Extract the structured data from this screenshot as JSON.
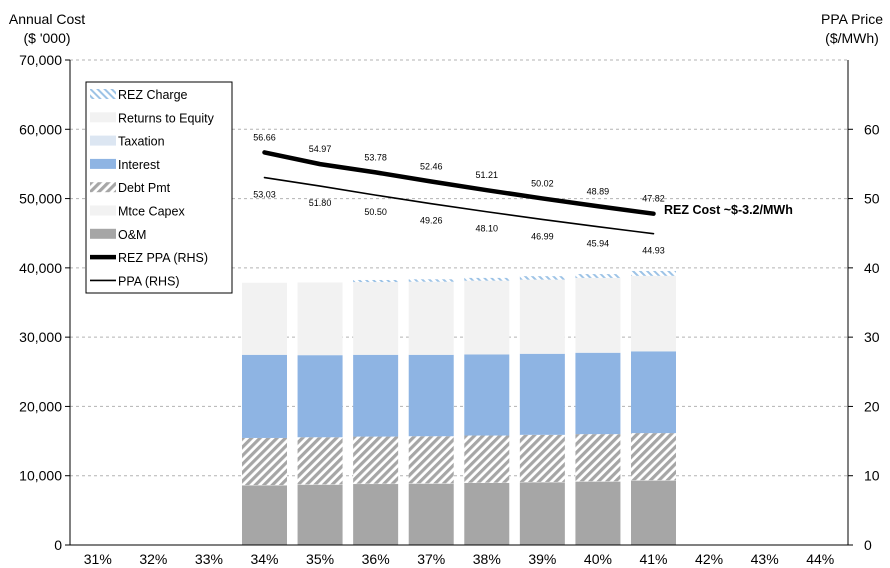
{
  "chart_data": {
    "type": "bar",
    "y_left": {
      "label_line1": "Annual  Cost",
      "label_line2": "($ '000)",
      "lim": [
        0,
        70000
      ],
      "ticks": [
        "0",
        "10,000",
        "20,000",
        "30,000",
        "40,000",
        "50,000",
        "60,000",
        "70,000"
      ],
      "tick_values": [
        0,
        10000,
        20000,
        30000,
        40000,
        50000,
        60000,
        70000
      ]
    },
    "y_right": {
      "label_line1": "PPA Price",
      "label_line2": "($/MWh)",
      "lim": [
        0,
        70
      ],
      "ticks": [
        "0",
        "10",
        "20",
        "30",
        "40",
        "50",
        "60"
      ],
      "tick_values": [
        0,
        10,
        20,
        30,
        40,
        50,
        60
      ]
    },
    "categories": [
      "31%",
      "32%",
      "33%",
      "34%",
      "35%",
      "36%",
      "37%",
      "38%",
      "39%",
      "40%",
      "41%",
      "42%",
      "43%",
      "44%"
    ],
    "grid": "horizontal-dashed",
    "legend_position": "top-left",
    "series": [
      {
        "name": "O&M",
        "kind": "bar",
        "color": "#a6a6a6",
        "pattern": "solid",
        "values": [
          null,
          null,
          null,
          8600,
          8700,
          8800,
          8850,
          8950,
          9050,
          9150,
          9300,
          null,
          null,
          null
        ]
      },
      {
        "name": "Mtce Capex",
        "kind": "bar",
        "color": "#f2f2f2",
        "pattern": "solid",
        "values": [
          null,
          null,
          null,
          50,
          50,
          50,
          50,
          50,
          50,
          50,
          50,
          null,
          null,
          null
        ]
      },
      {
        "name": "Debt Pmt",
        "kind": "bar",
        "color": "#a6a6a6",
        "pattern": "hatch",
        "values": [
          null,
          null,
          null,
          6800,
          6800,
          6800,
          6800,
          6800,
          6800,
          6800,
          6800,
          null,
          null,
          null
        ]
      },
      {
        "name": "Interest",
        "kind": "bar",
        "color": "#8eb4e3",
        "pattern": "solid",
        "values": [
          null,
          null,
          null,
          12000,
          11850,
          11800,
          11750,
          11700,
          11700,
          11750,
          11800,
          null,
          null,
          null
        ]
      },
      {
        "name": "Taxation",
        "kind": "bar",
        "color": "#dce6f2",
        "pattern": "solid",
        "values": [
          null,
          null,
          null,
          0,
          0,
          0,
          0,
          0,
          0,
          0,
          0,
          null,
          null,
          null
        ]
      },
      {
        "name": "Returns to Equity",
        "kind": "bar",
        "color": "#f2f2f2",
        "pattern": "solid",
        "values": [
          null,
          null,
          null,
          10400,
          10500,
          10500,
          10550,
          10650,
          10700,
          10800,
          10900,
          null,
          null,
          null
        ]
      },
      {
        "name": "REZ Charge",
        "kind": "bar",
        "color": "#9dc3e6",
        "pattern": "light-hatch",
        "values": [
          null,
          null,
          null,
          0,
          0,
          300,
          350,
          400,
          500,
          550,
          700,
          null,
          null,
          null
        ]
      }
    ],
    "lines": [
      {
        "name": "REZ PPA (RHS)",
        "axis": "right",
        "color": "#000000",
        "width": 4.5,
        "values": [
          null,
          null,
          null,
          56.66,
          54.97,
          53.78,
          52.46,
          51.21,
          50.02,
          48.89,
          47.82,
          null,
          null,
          null
        ],
        "labels": [
          null,
          null,
          null,
          "56.66",
          "54.97",
          "53.78",
          "52.46",
          "51.21",
          "50.02",
          "48.89",
          "47.82",
          null,
          null,
          null
        ],
        "label_side": "above"
      },
      {
        "name": "PPA (RHS)",
        "axis": "right",
        "color": "#000000",
        "width": 1.6,
        "values": [
          null,
          null,
          null,
          53.03,
          51.8,
          50.5,
          49.26,
          48.1,
          46.99,
          45.94,
          44.93,
          null,
          null,
          null
        ],
        "labels": [
          null,
          null,
          null,
          "53.03",
          "51.80",
          "50.50",
          "49.26",
          "48.10",
          "46.99",
          "45.94",
          "44.93",
          null,
          null,
          null
        ],
        "label_side": "below"
      }
    ],
    "legend": [
      {
        "name": "REZ Charge",
        "kind": "light-hatch",
        "color": "#9dc3e6"
      },
      {
        "name": "Returns to Equity",
        "kind": "solid",
        "color": "#f2f2f2"
      },
      {
        "name": "Taxation",
        "kind": "solid",
        "color": "#dce6f2"
      },
      {
        "name": "Interest",
        "kind": "solid",
        "color": "#8eb4e3"
      },
      {
        "name": "Debt Pmt",
        "kind": "hatch",
        "color": "#a6a6a6"
      },
      {
        "name": "Mtce Capex",
        "kind": "solid",
        "color": "#f2f2f2"
      },
      {
        "name": "O&M",
        "kind": "solid",
        "color": "#a6a6a6"
      },
      {
        "name": "REZ PPA (RHS)",
        "kind": "thick-line",
        "color": "#000000"
      },
      {
        "name": "PPA (RHS)",
        "kind": "thin-line",
        "color": "#000000"
      }
    ],
    "annotation": "REZ Cost ~$-3.2/MWh"
  }
}
